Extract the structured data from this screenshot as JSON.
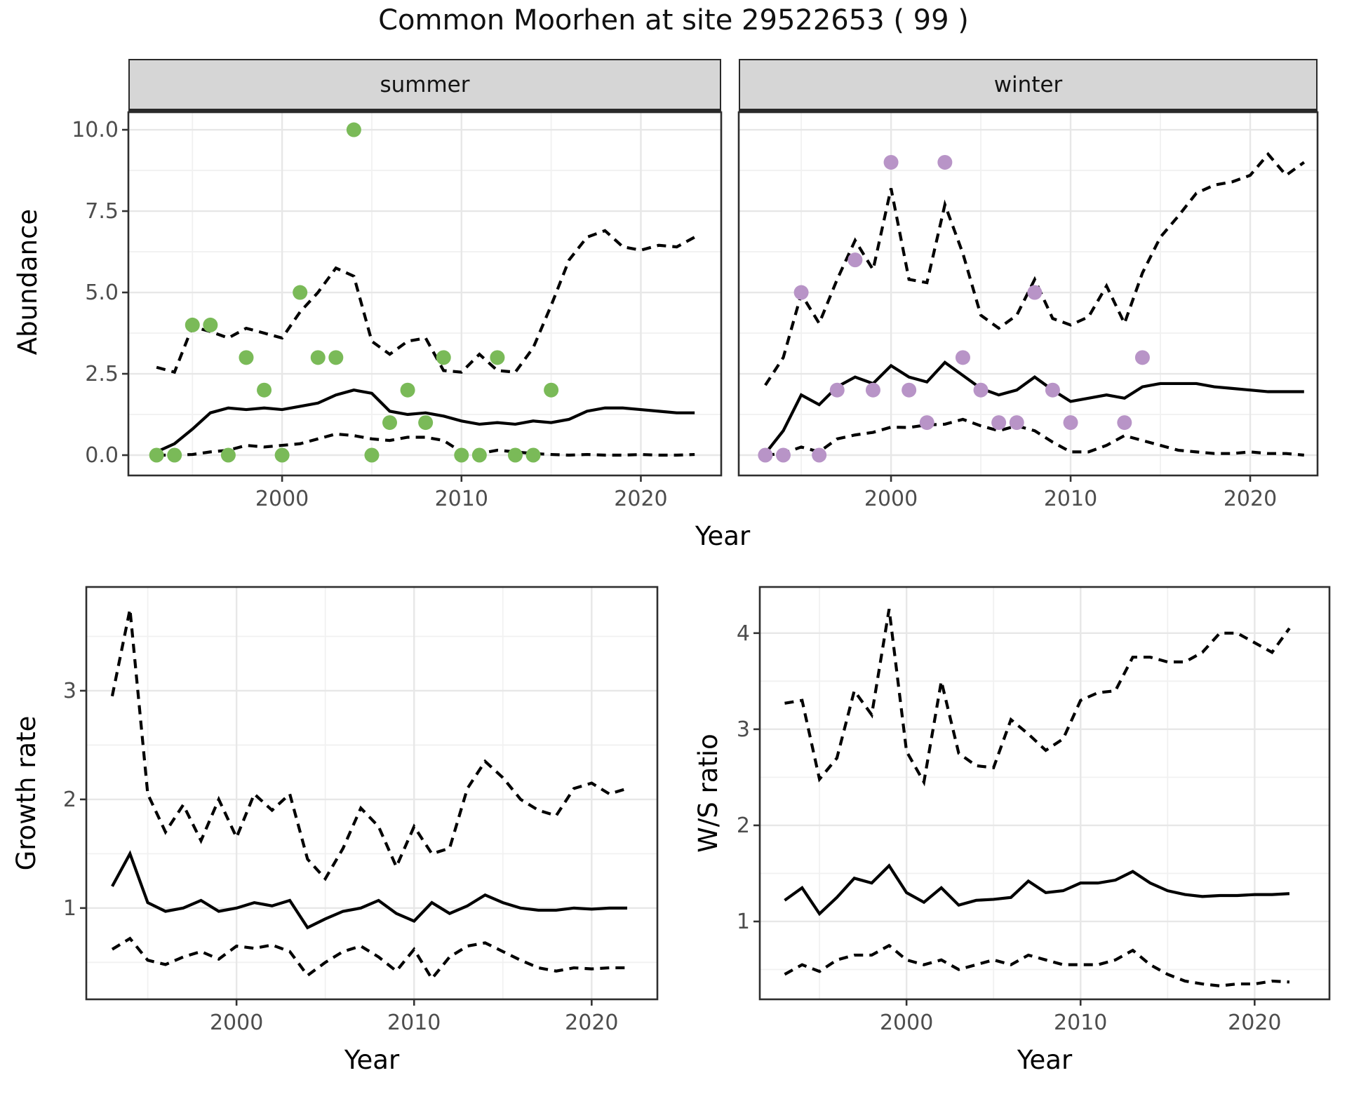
{
  "title": "Common Moorhen at site 29522653 ( 99 )",
  "colors": {
    "summer_point": "#7aba58",
    "winter_point": "#b894c7",
    "line": "#000000",
    "grid_major": "#e7e7e7",
    "grid_minor": "#f1f1f1",
    "strip_bg": "#d6d6d6",
    "panel_border": "#2e2e2e",
    "axis_text": "#4d4d4d",
    "background": "#ffffff"
  },
  "chart_data": [
    {
      "id": "abundance_summer",
      "type": "scatter",
      "facet": "summer",
      "xlabel": "Year",
      "ylabel": "Abundance",
      "grid": true,
      "legend": "none",
      "xlim": [
        1991.43,
        2024.48
      ],
      "ylim": [
        -0.625,
        10.54
      ],
      "xticks": [
        2000,
        2010,
        2020
      ],
      "xtick_labels": [
        "2000",
        "2010",
        "2020"
      ],
      "yticks": [
        0,
        2.5,
        5,
        7.5,
        10
      ],
      "ytick_labels": [
        "0.0",
        "2.5",
        "5.0",
        "7.5",
        "10.0"
      ],
      "point_color": "#7aba58",
      "scatter": {
        "x": [
          1993,
          1994,
          1995,
          1996,
          1997,
          1998,
          1999,
          2000,
          2001,
          2002,
          2003,
          2004,
          2005,
          2006,
          2007,
          2008,
          2009,
          2010,
          2011,
          2012,
          2013,
          2014,
          2015
        ],
        "y": [
          0,
          0,
          4,
          4,
          0,
          3,
          2,
          0,
          5,
          3,
          3,
          10,
          0,
          1,
          2,
          1,
          3,
          0,
          0,
          3,
          0,
          0,
          2
        ]
      },
      "series": [
        {
          "name": "median",
          "style": "solid",
          "x": [
            1993,
            1994,
            1995,
            1996,
            1997,
            1998,
            1999,
            2000,
            2001,
            2002,
            2003,
            2004,
            2005,
            2006,
            2007,
            2008,
            2009,
            2010,
            2011,
            2012,
            2013,
            2014,
            2015,
            2016,
            2017,
            2018,
            2019,
            2020,
            2021,
            2022,
            2023
          ],
          "y": [
            0.1,
            0.35,
            0.8,
            1.3,
            1.45,
            1.4,
            1.45,
            1.4,
            1.5,
            1.6,
            1.85,
            2.0,
            1.9,
            1.35,
            1.25,
            1.3,
            1.2,
            1.05,
            0.95,
            1.0,
            0.95,
            1.05,
            1.0,
            1.1,
            1.35,
            1.45,
            1.45,
            1.4,
            1.35,
            1.3,
            1.3
          ]
        },
        {
          "name": "upper_CI",
          "style": "dashed",
          "x": [
            1993,
            1994,
            1995,
            1996,
            1997,
            1998,
            1999,
            2000,
            2001,
            2002,
            2003,
            2004,
            2005,
            2006,
            2007,
            2008,
            2009,
            2010,
            2011,
            2012,
            2013,
            2014,
            2015,
            2016,
            2017,
            2018,
            2019,
            2020,
            2021,
            2022,
            2023
          ],
          "y": [
            2.7,
            2.55,
            3.95,
            3.8,
            3.6,
            3.9,
            3.75,
            3.6,
            4.4,
            5.0,
            5.75,
            5.5,
            3.5,
            3.1,
            3.5,
            3.6,
            2.6,
            2.55,
            3.1,
            2.6,
            2.55,
            3.3,
            4.6,
            6.0,
            6.7,
            6.9,
            6.4,
            6.3,
            6.45,
            6.4,
            6.7
          ]
        },
        {
          "name": "lower_CI",
          "style": "dashed",
          "x": [
            1993,
            1994,
            1995,
            1996,
            1997,
            1998,
            1999,
            2000,
            2001,
            2002,
            2003,
            2004,
            2005,
            2006,
            2007,
            2008,
            2009,
            2010,
            2011,
            2012,
            2013,
            2014,
            2015,
            2016,
            2017,
            2018,
            2019,
            2020,
            2021,
            2022,
            2023
          ],
          "y": [
            0.0,
            0.0,
            0.02,
            0.1,
            0.15,
            0.3,
            0.25,
            0.3,
            0.35,
            0.5,
            0.65,
            0.6,
            0.5,
            0.45,
            0.55,
            0.55,
            0.45,
            0.1,
            0.05,
            0.15,
            0.1,
            0.05,
            0.02,
            0.0,
            0.02,
            0.0,
            0.0,
            0.02,
            0.0,
            0.0,
            0.02
          ]
        }
      ]
    },
    {
      "id": "abundance_winter",
      "type": "scatter",
      "facet": "winter",
      "xlabel": "Year",
      "ylabel": "Abundance",
      "grid": true,
      "legend": "none",
      "xlim": [
        1991.52,
        2023.75
      ],
      "ylim": [
        -0.625,
        10.54
      ],
      "xticks": [
        2000,
        2010,
        2020
      ],
      "xtick_labels": [
        "2000",
        "2010",
        "2020"
      ],
      "yticks": [
        0,
        2.5,
        5,
        7.5,
        10
      ],
      "ytick_labels": [],
      "point_color": "#b894c7",
      "scatter": {
        "x": [
          1993,
          1994,
          1995,
          1996,
          1997,
          1998,
          1999,
          2000,
          2001,
          2002,
          2003,
          2004,
          2005,
          2006,
          2007,
          2008,
          2009,
          2010,
          2013,
          2014
        ],
        "y": [
          0,
          0,
          5,
          0,
          2,
          6,
          2,
          9,
          2,
          1,
          9,
          3,
          2,
          1,
          1,
          5,
          2,
          1,
          1,
          3
        ]
      },
      "series": [
        {
          "name": "median",
          "style": "solid",
          "x": [
            1993,
            1994,
            1995,
            1996,
            1997,
            1998,
            1999,
            2000,
            2001,
            2002,
            2003,
            2004,
            2005,
            2006,
            2007,
            2008,
            2009,
            2010,
            2011,
            2012,
            2013,
            2014,
            2015,
            2016,
            2017,
            2018,
            2019,
            2020,
            2021,
            2022,
            2023
          ],
          "y": [
            0.05,
            0.75,
            1.85,
            1.55,
            2.1,
            2.4,
            2.2,
            2.75,
            2.4,
            2.25,
            2.85,
            2.45,
            2.05,
            1.85,
            2.0,
            2.4,
            2.0,
            1.65,
            1.75,
            1.85,
            1.75,
            2.1,
            2.2,
            2.2,
            2.2,
            2.1,
            2.05,
            2.0,
            1.95,
            1.95,
            1.95
          ]
        },
        {
          "name": "upper_CI",
          "style": "dashed",
          "x": [
            1993,
            1994,
            1995,
            1996,
            1997,
            1998,
            1999,
            2000,
            2001,
            2002,
            2003,
            2004,
            2005,
            2006,
            2007,
            2008,
            2009,
            2010,
            2011,
            2012,
            2013,
            2014,
            2015,
            2016,
            2017,
            2018,
            2019,
            2020,
            2021,
            2022,
            2023
          ],
          "y": [
            2.15,
            3.0,
            4.95,
            4.05,
            5.4,
            6.6,
            5.7,
            8.2,
            5.4,
            5.3,
            7.7,
            6.2,
            4.3,
            3.9,
            4.3,
            5.4,
            4.2,
            4.0,
            4.25,
            5.2,
            4.05,
            5.6,
            6.7,
            7.35,
            8.05,
            8.3,
            8.4,
            8.6,
            9.25,
            8.6,
            9.0
          ]
        },
        {
          "name": "lower_CI",
          "style": "dashed",
          "x": [
            1993,
            1994,
            1995,
            1996,
            1997,
            1998,
            1999,
            2000,
            2001,
            2002,
            2003,
            2004,
            2005,
            2006,
            2007,
            2008,
            2009,
            2010,
            2011,
            2012,
            2013,
            2014,
            2015,
            2016,
            2017,
            2018,
            2019,
            2020,
            2021,
            2022,
            2023
          ],
          "y": [
            0.0,
            0.05,
            0.25,
            0.1,
            0.5,
            0.62,
            0.7,
            0.86,
            0.85,
            0.93,
            0.95,
            1.1,
            0.9,
            0.75,
            0.9,
            0.75,
            0.4,
            0.1,
            0.1,
            0.3,
            0.6,
            0.45,
            0.3,
            0.15,
            0.1,
            0.05,
            0.05,
            0.1,
            0.05,
            0.05,
            0.0
          ]
        }
      ]
    },
    {
      "id": "growth_rate",
      "type": "line",
      "xlabel": "Year",
      "ylabel": "Growth rate",
      "grid": true,
      "legend": "none",
      "xlim": [
        1991.54,
        2023.7
      ],
      "ylim": [
        0.16,
        3.955
      ],
      "xticks": [
        2000,
        2010,
        2020
      ],
      "xtick_labels": [
        "2000",
        "2010",
        "2020"
      ],
      "yticks": [
        1,
        2,
        3
      ],
      "ytick_labels": [
        "1",
        "2",
        "3"
      ],
      "series": [
        {
          "name": "median",
          "style": "solid",
          "x": [
            1993,
            1994,
            1995,
            1996,
            1997,
            1998,
            1999,
            2000,
            2001,
            2002,
            2003,
            2004,
            2005,
            2006,
            2007,
            2008,
            2009,
            2010,
            2011,
            2012,
            2013,
            2014,
            2015,
            2016,
            2017,
            2018,
            2019,
            2020,
            2021,
            2022
          ],
          "y": [
            1.2,
            1.5,
            1.05,
            0.97,
            1.0,
            1.07,
            0.97,
            1.0,
            1.05,
            1.02,
            1.07,
            0.82,
            0.9,
            0.97,
            1.0,
            1.07,
            0.95,
            0.88,
            1.05,
            0.95,
            1.02,
            1.12,
            1.05,
            1.0,
            0.98,
            0.98,
            1.0,
            0.99,
            1.0,
            1.0
          ]
        },
        {
          "name": "upper_CI",
          "style": "dashed",
          "x": [
            1993,
            1994,
            1995,
            1996,
            1997,
            1998,
            1999,
            2000,
            2001,
            2002,
            2003,
            2004,
            2005,
            2006,
            2007,
            2008,
            2009,
            2010,
            2011,
            2012,
            2013,
            2014,
            2015,
            2016,
            2017,
            2018,
            2019,
            2020,
            2021,
            2022
          ],
          "y": [
            2.95,
            3.75,
            2.05,
            1.7,
            1.95,
            1.62,
            2.0,
            1.65,
            2.05,
            1.9,
            2.05,
            1.45,
            1.27,
            1.55,
            1.92,
            1.75,
            1.38,
            1.75,
            1.5,
            1.55,
            2.1,
            2.35,
            2.2,
            2.0,
            1.9,
            1.85,
            2.1,
            2.15,
            2.05,
            2.1
          ]
        },
        {
          "name": "lower_CI",
          "style": "dashed",
          "x": [
            1993,
            1994,
            1995,
            1996,
            1997,
            1998,
            1999,
            2000,
            2001,
            2002,
            2003,
            2004,
            2005,
            2006,
            2007,
            2008,
            2009,
            2010,
            2011,
            2012,
            2013,
            2014,
            2015,
            2016,
            2017,
            2018,
            2019,
            2020,
            2021,
            2022
          ],
          "y": [
            0.62,
            0.72,
            0.52,
            0.48,
            0.55,
            0.6,
            0.53,
            0.65,
            0.63,
            0.66,
            0.6,
            0.38,
            0.5,
            0.6,
            0.65,
            0.55,
            0.42,
            0.62,
            0.35,
            0.55,
            0.65,
            0.68,
            0.6,
            0.52,
            0.45,
            0.42,
            0.45,
            0.44,
            0.45,
            0.45
          ]
        }
      ]
    },
    {
      "id": "ws_ratio",
      "type": "line",
      "xlabel": "Year",
      "ylabel": "W/S ratio",
      "grid": true,
      "legend": "none",
      "xlim": [
        1991.57,
        2024.3
      ],
      "ylim": [
        0.19,
        4.48
      ],
      "xticks": [
        2000,
        2010,
        2020
      ],
      "xtick_labels": [
        "2000",
        "2010",
        "2020"
      ],
      "yticks": [
        1,
        2,
        3,
        4
      ],
      "ytick_labels": [
        "1",
        "2",
        "3",
        "4"
      ],
      "series": [
        {
          "name": "median",
          "style": "solid",
          "x": [
            1993,
            1994,
            1995,
            1996,
            1997,
            1998,
            1999,
            2000,
            2001,
            2002,
            2003,
            2004,
            2005,
            2006,
            2007,
            2008,
            2009,
            2010,
            2011,
            2012,
            2013,
            2014,
            2015,
            2016,
            2017,
            2018,
            2019,
            2020,
            2021,
            2022
          ],
          "y": [
            1.22,
            1.35,
            1.08,
            1.25,
            1.45,
            1.4,
            1.58,
            1.3,
            1.2,
            1.35,
            1.17,
            1.22,
            1.23,
            1.25,
            1.42,
            1.3,
            1.32,
            1.4,
            1.4,
            1.43,
            1.52,
            1.4,
            1.32,
            1.28,
            1.26,
            1.27,
            1.27,
            1.28,
            1.28,
            1.29
          ]
        },
        {
          "name": "upper_CI",
          "style": "dashed",
          "x": [
            1993,
            1994,
            1995,
            1996,
            1997,
            1998,
            1999,
            2000,
            2001,
            2002,
            2003,
            2004,
            2005,
            2006,
            2007,
            2008,
            2009,
            2010,
            2011,
            2012,
            2013,
            2014,
            2015,
            2016,
            2017,
            2018,
            2019,
            2020,
            2021,
            2022
          ],
          "y": [
            3.27,
            3.3,
            2.48,
            2.7,
            3.4,
            3.15,
            4.25,
            2.77,
            2.45,
            3.5,
            2.75,
            2.62,
            2.6,
            3.1,
            2.95,
            2.78,
            2.9,
            3.3,
            3.38,
            3.4,
            3.75,
            3.75,
            3.7,
            3.7,
            3.8,
            4.0,
            4.0,
            3.9,
            3.8,
            4.05
          ]
        },
        {
          "name": "lower_CI",
          "style": "dashed",
          "x": [
            1993,
            1994,
            1995,
            1996,
            1997,
            1998,
            1999,
            2000,
            2001,
            2002,
            2003,
            2004,
            2005,
            2006,
            2007,
            2008,
            2009,
            2010,
            2011,
            2012,
            2013,
            2014,
            2015,
            2016,
            2017,
            2018,
            2019,
            2020,
            2021,
            2022
          ],
          "y": [
            0.45,
            0.55,
            0.48,
            0.6,
            0.65,
            0.65,
            0.75,
            0.6,
            0.55,
            0.6,
            0.5,
            0.55,
            0.6,
            0.55,
            0.65,
            0.6,
            0.55,
            0.55,
            0.55,
            0.6,
            0.7,
            0.55,
            0.45,
            0.38,
            0.35,
            0.33,
            0.35,
            0.35,
            0.38,
            0.37
          ]
        }
      ]
    }
  ]
}
